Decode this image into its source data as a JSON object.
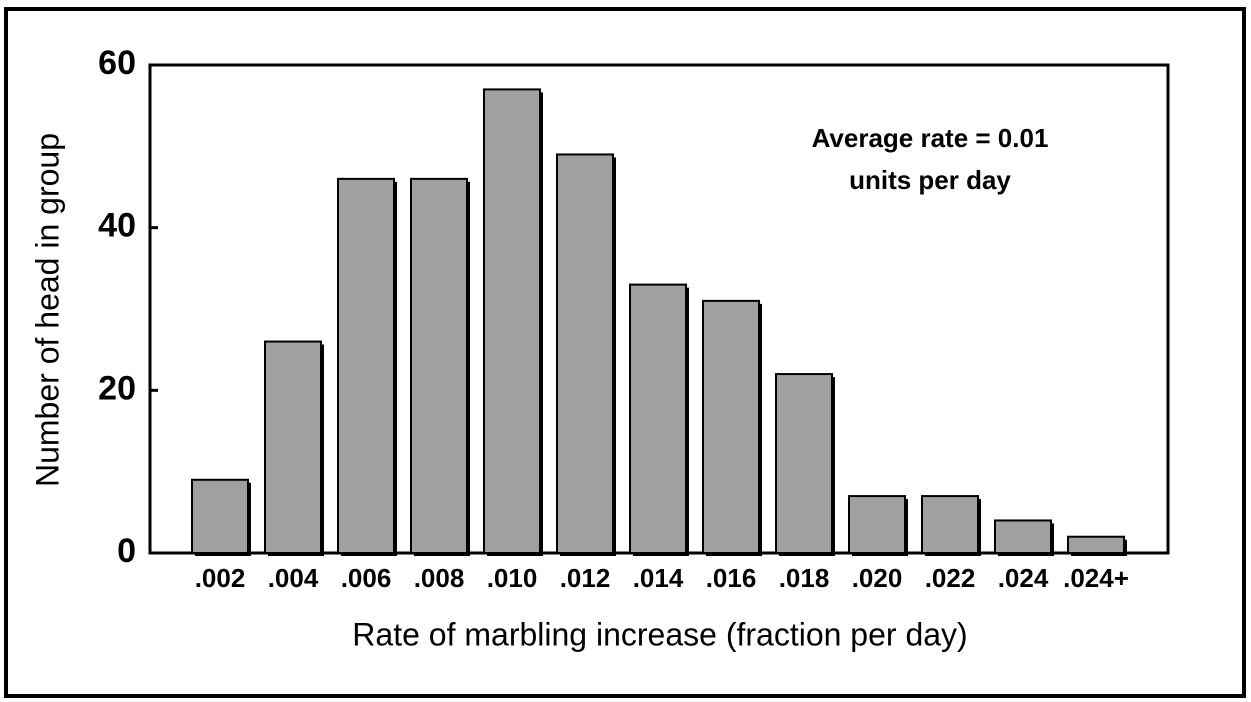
{
  "chart_data": {
    "type": "bar",
    "categories": [
      ".002",
      ".004",
      ".006",
      ".008",
      ".010",
      ".012",
      ".014",
      ".016",
      ".018",
      ".020",
      ".022",
      ".024",
      ".024+"
    ],
    "values": [
      9,
      26,
      46,
      46,
      57,
      49,
      33,
      31,
      22,
      7,
      7,
      4,
      2
    ],
    "color": "#a0a0a0",
    "x_label": "Rate of marbling increase (fraction per day)",
    "y_label": "Number of head in group",
    "annotation": [
      "Average rate = 0.01",
      "units per day"
    ],
    "ylim": [
      0,
      60
    ],
    "yticks": [
      0,
      20,
      40,
      60
    ],
    "grid": false
  }
}
